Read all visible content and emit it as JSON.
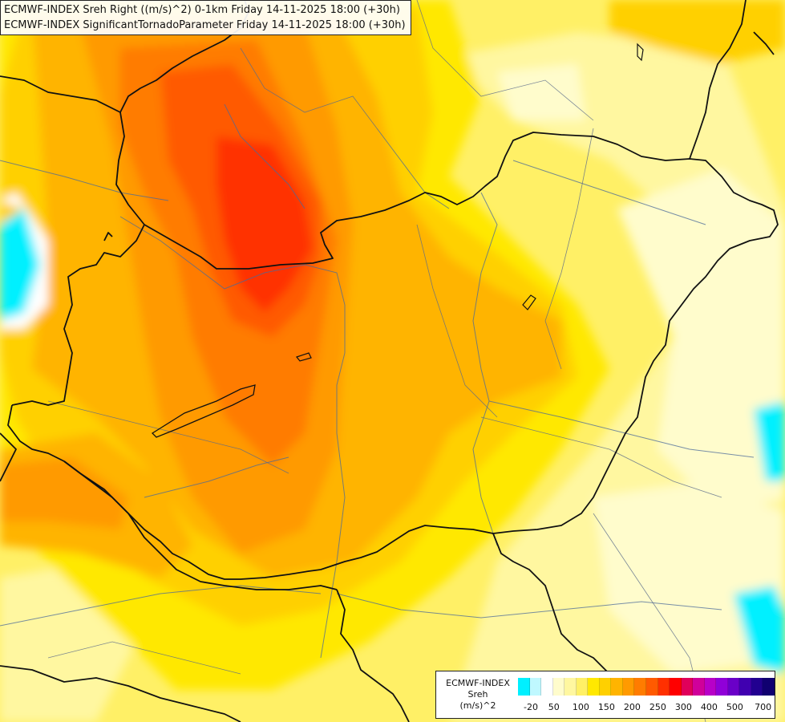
{
  "header": {
    "line1": "ECMWF-INDEX Sreh Right ((m/s)^2) 0-1km Friday 14-11-2025 18:00 (+30h)",
    "line2": "ECMWF-INDEX SignificantTornadoParameter Friday 14-11-2025 18:00 (+30h)"
  },
  "legend": {
    "title_line1": "ECMWF-INDEX",
    "title_line2": "Sreh",
    "title_line3": "(m/s)^2",
    "colors": [
      "#00f0ff",
      "#bff8ff",
      "#ffffff",
      "#fffccc",
      "#fff7a0",
      "#fff066",
      "#ffe800",
      "#ffd000",
      "#ffb400",
      "#ff9a00",
      "#ff7c00",
      "#ff5a00",
      "#ff3000",
      "#ff0000",
      "#e0005a",
      "#d0009a",
      "#b800c8",
      "#9000d8",
      "#6a00c8",
      "#4000b0",
      "#220090",
      "#100070"
    ],
    "ticks": [
      "-20",
      "50",
      "100",
      "150",
      "200",
      "250",
      "300",
      "400",
      "500",
      "700"
    ]
  },
  "map": {
    "field_colors": {
      "pale": "#fffccc",
      "light": "#fff7a0",
      "yellow": "#fff066",
      "gold": "#ffe800",
      "amber": "#ffd000",
      "orange1": "#ffb400",
      "orange2": "#ff9a00",
      "orange3": "#ff7c00",
      "red1": "#ff5a00",
      "red2": "#ff3000",
      "cyan": "#00f0ff",
      "white": "#ffffff"
    }
  }
}
